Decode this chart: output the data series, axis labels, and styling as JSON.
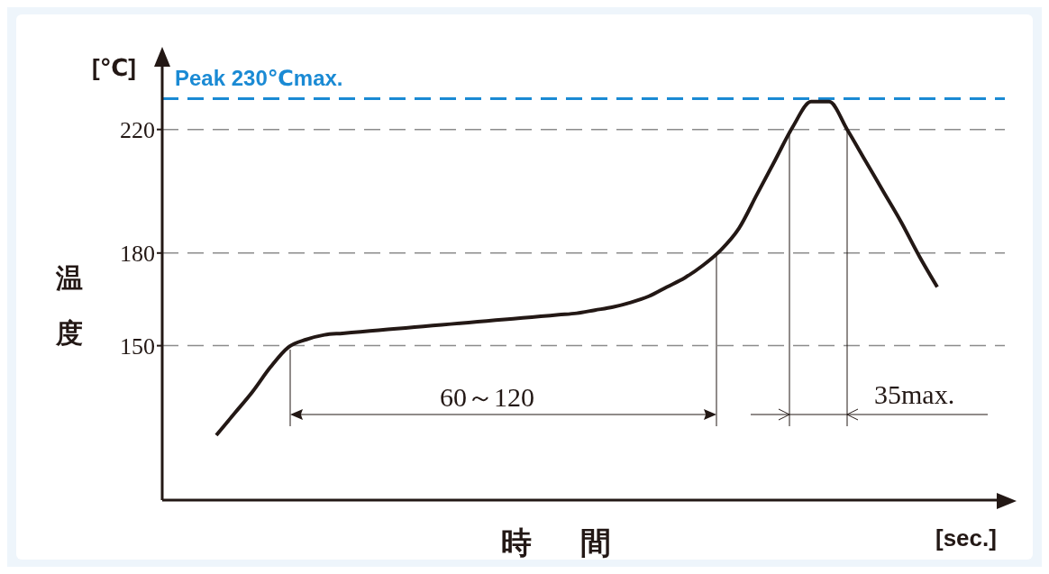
{
  "chart_data": {
    "type": "line",
    "xlabel": "時間",
    "ylabel": "温度",
    "categories": [
      null,
      null,
      null,
      null,
      null,
      null,
      null,
      null,
      null,
      null,
      null,
      null,
      null,
      null,
      null,
      null,
      null,
      null,
      null,
      null,
      null,
      null,
      null,
      null,
      null,
      null,
      null,
      null,
      null,
      null,
      null,
      null,
      null,
      null,
      null,
      null,
      null,
      null,
      null,
      null,
      null
    ],
    "series": [
      {
        "color": "#231815",
        "values": [
          121,
          128,
          135,
          143,
          149.5,
          152,
          153.5,
          154,
          154.5,
          155,
          155.5,
          156,
          156.5,
          157,
          157.5,
          158,
          158.5,
          159,
          159.5,
          160,
          160.5,
          161.5,
          162.5,
          164,
          166,
          169,
          172,
          176,
          181,
          188,
          199,
          210,
          221,
          229,
          229,
          220,
          210,
          200,
          190,
          179,
          169
        ]
      }
    ],
    "ylim": [
      100,
      245
    ],
    "yticks": [
      150,
      180,
      220
    ],
    "grid": false,
    "legend": false,
    "marker": "none",
    "line_style": "solid",
    "ref_lines": [
      {
        "axis": "y",
        "value": 230,
        "label": "Peak 230℃max.",
        "color": "#1a8ad4",
        "line_style": "dashed"
      },
      {
        "axis": "y",
        "value": 220,
        "color": "#8c8c8c",
        "line_style": "dashed"
      },
      {
        "axis": "y",
        "value": 180,
        "color": "#8c8c8c",
        "line_style": "dashed"
      },
      {
        "axis": "y",
        "value": 150,
        "color": "#8c8c8c",
        "line_style": "dashed"
      }
    ],
    "annotations": [
      "[℃]",
      "[sec.]",
      "60～120",
      "35max."
    ]
  }
}
